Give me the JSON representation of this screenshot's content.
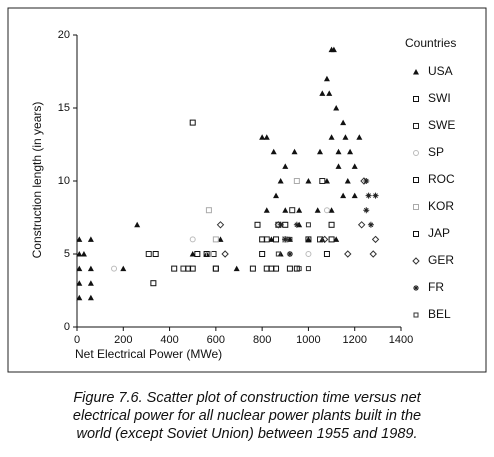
{
  "chart_data": {
    "type": "scatter",
    "xlabel": "Net Electrical Power (MWe)",
    "ylabel": "Construction length (in years)",
    "legend_title": "Countries",
    "legend": "right",
    "caption": [
      "Figure 7.6. Scatter plot of construction time versus net",
      "electrical power for all nuclear power plants built in the",
      "world (except Soviet Union) between 1955 and 1989."
    ],
    "xlim": [
      0,
      1400
    ],
    "xticks": [
      0,
      200,
      400,
      600,
      800,
      1000,
      1200,
      1400
    ],
    "ylim": [
      0,
      20
    ],
    "yticks": [
      0,
      5,
      10,
      15,
      20
    ],
    "grid": false,
    "series": [
      {
        "name": "USA",
        "marker": "triangle",
        "color": "#111111",
        "x": [
          10,
          10,
          10,
          10,
          10,
          30,
          60,
          60,
          60,
          60,
          200,
          260,
          500,
          560,
          620,
          690,
          800,
          820,
          820,
          840,
          850,
          860,
          880,
          900,
          900,
          940,
          960,
          1000,
          1050,
          1060,
          1080,
          1090,
          1100,
          1110,
          1100,
          1120,
          1130,
          1150,
          1160,
          1180,
          1200,
          1100,
          1150,
          1080,
          1060,
          1000,
          920,
          1130,
          1170,
          1040,
          960,
          880,
          1200,
          1220,
          1120
        ],
        "y": [
          6,
          5,
          4,
          3,
          2,
          5,
          6,
          4,
          3,
          2,
          4,
          7,
          5,
          5,
          6,
          4,
          13,
          13,
          8,
          6,
          12,
          9,
          10,
          11,
          8,
          12,
          7,
          10,
          12,
          16,
          17,
          16,
          19,
          19,
          13,
          15,
          12,
          14,
          13,
          12,
          9,
          8,
          9,
          10,
          6,
          6,
          6,
          11,
          10,
          8,
          8,
          5,
          11,
          13,
          6
        ]
      },
      {
        "name": "SWI",
        "marker": "square",
        "color": "#111111",
        "x": [
          330,
          480,
          1000,
          920
        ],
        "y": [
          3,
          4,
          6,
          4
        ]
      },
      {
        "name": "SWE",
        "marker": "square",
        "color": "#222222",
        "x": [
          310,
          460,
          590,
          600,
          820,
          870,
          930,
          1050,
          1060
        ],
        "y": [
          5,
          4,
          5,
          4,
          6,
          7,
          8,
          6,
          10
        ]
      },
      {
        "name": "SP",
        "marker": "circle",
        "color": "#bbbbbb",
        "x": [
          160,
          500,
          920,
          1000,
          1080
        ],
        "y": [
          4,
          6,
          5,
          5,
          8
        ]
      },
      {
        "name": "ROC",
        "marker": "square",
        "color": "#111111",
        "x": [
          500,
          600,
          950,
          900
        ],
        "y": [
          14,
          4,
          4,
          6
        ]
      },
      {
        "name": "KOR",
        "marker": "square",
        "color": "#aaaaaa",
        "x": [
          570,
          600,
          900,
          950,
          570
        ],
        "y": [
          8,
          6,
          6,
          10,
          5
        ]
      },
      {
        "name": "JAP",
        "marker": "square",
        "color": "#111111",
        "x": [
          340,
          420,
          500,
          520,
          560,
          800,
          820,
          840,
          860,
          860,
          900,
          1080,
          1100,
          780,
          1100,
          760,
          800
        ],
        "y": [
          5,
          4,
          4,
          5,
          5,
          5,
          4,
          4,
          4,
          6,
          7,
          5,
          6,
          7,
          7,
          4,
          6
        ]
      },
      {
        "name": "GER",
        "marker": "diamond",
        "color": "#333333",
        "x": [
          620,
          640,
          870,
          1070,
          1170,
          1230,
          1240,
          1280,
          1290
        ],
        "y": [
          7,
          5,
          7,
          6,
          5,
          7,
          10,
          5,
          6
        ]
      },
      {
        "name": "FR",
        "marker": "star",
        "color": "#222222",
        "x": [
          880,
          900,
          920,
          950,
          1250,
          1260,
          1270,
          1290,
          1250
        ],
        "y": [
          7,
          6,
          5,
          7,
          8,
          9,
          7,
          9,
          10
        ]
      },
      {
        "name": "BEL",
        "marker": "smallsquare",
        "color": "#333333",
        "x": [
          870,
          920,
          1000,
          960,
          1000
        ],
        "y": [
          5,
          6,
          7,
          4,
          4
        ]
      }
    ]
  }
}
